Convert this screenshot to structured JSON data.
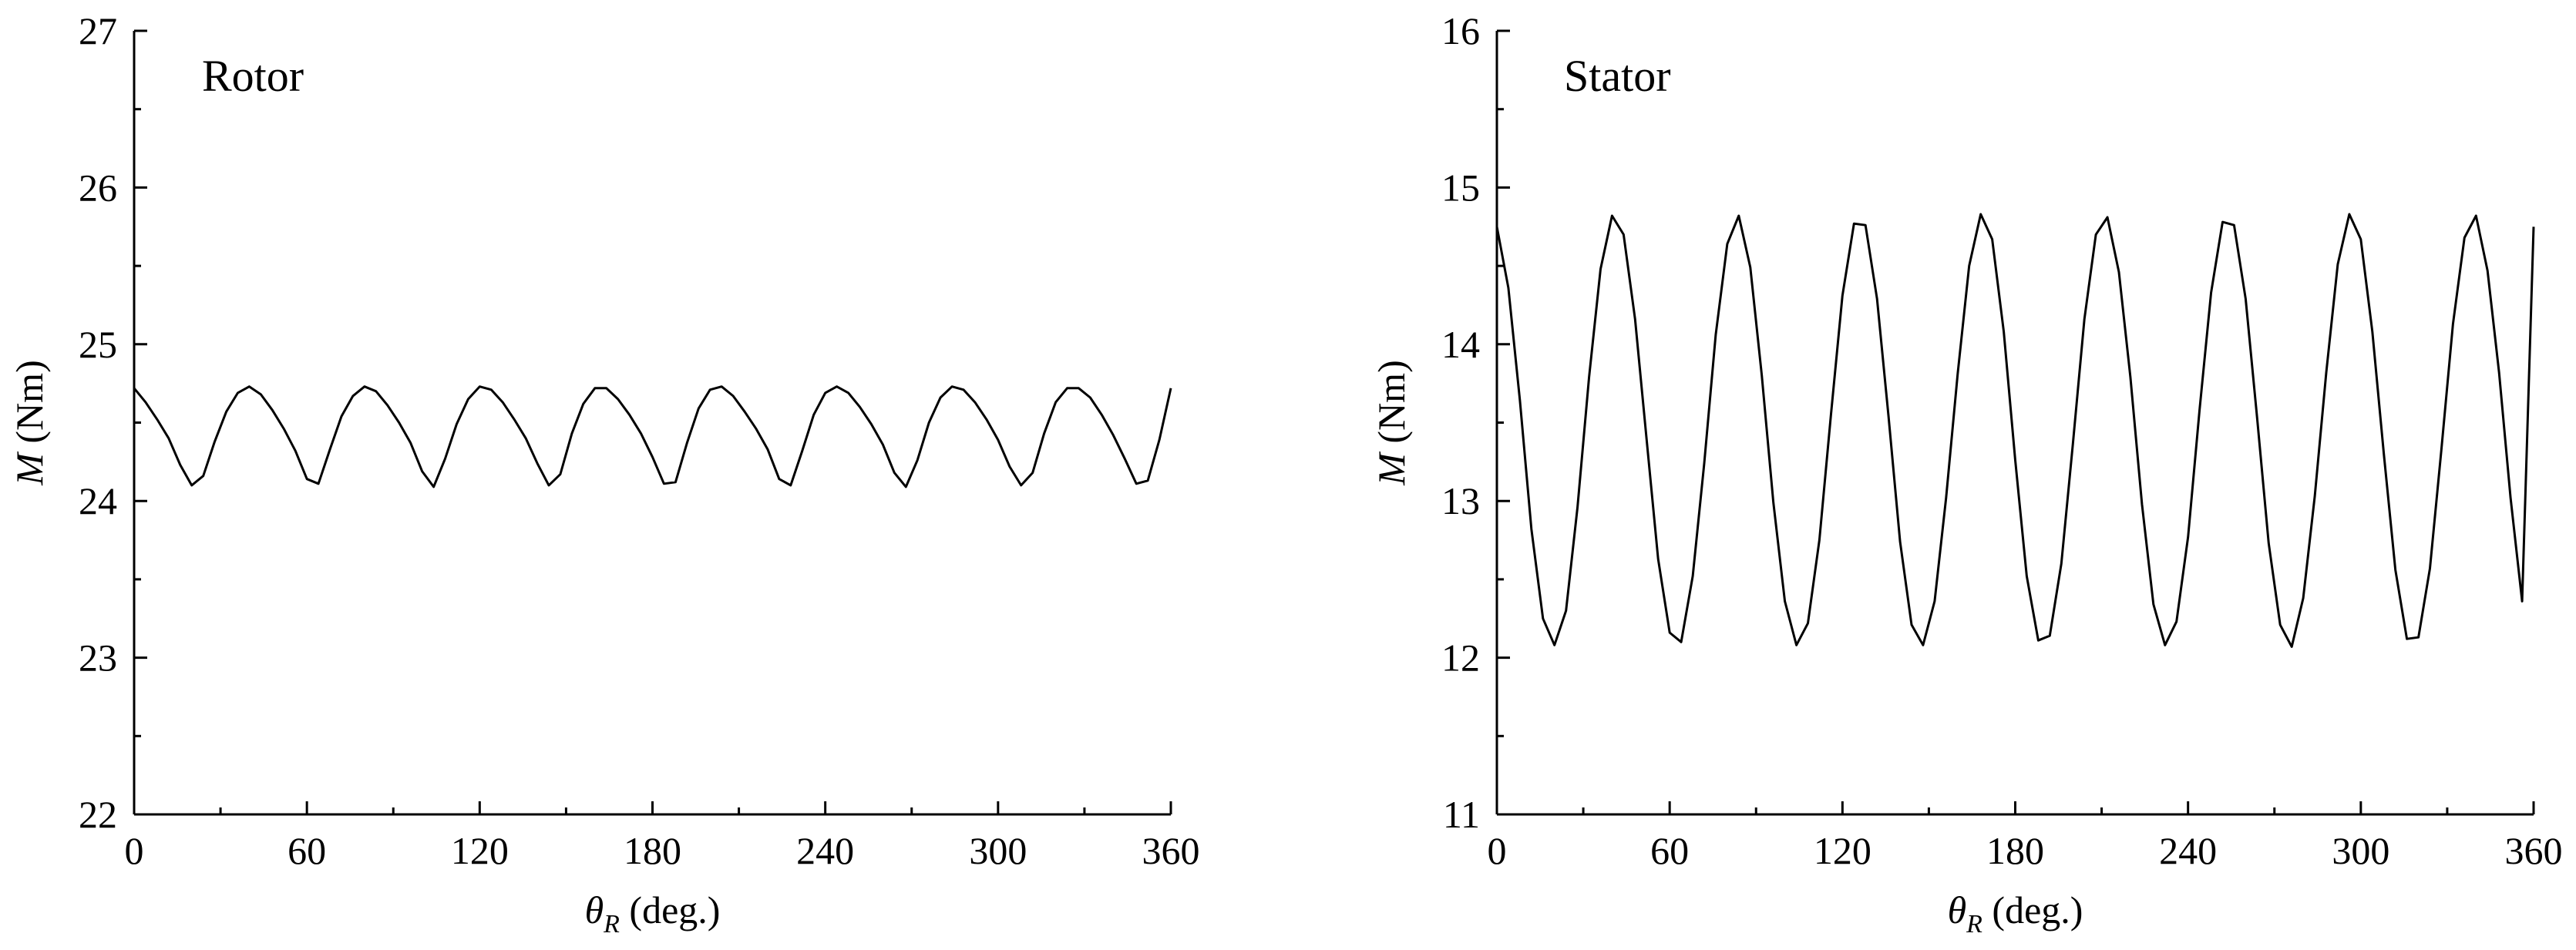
{
  "chart_data": [
    {
      "type": "line",
      "title": "Rotor",
      "xlabel": {
        "symbol": "θ",
        "subscript": "R",
        "rest": " (deg.)"
      },
      "ylabel": {
        "symbol": "M",
        "rest": " (Nm)"
      },
      "xlim": [
        0,
        360
      ],
      "ylim": [
        22,
        27
      ],
      "xticks": [
        "0",
        "60",
        "120",
        "180",
        "240",
        "300",
        "360"
      ],
      "yticks": [
        "22",
        "23",
        "24",
        "25",
        "26",
        "27"
      ],
      "grid": false,
      "series": [
        {
          "x": [
            0,
            4,
            8,
            12,
            16,
            20,
            24,
            28,
            32,
            36,
            40,
            44,
            48,
            52,
            56,
            60,
            64,
            68,
            72,
            76,
            80,
            84,
            88,
            92,
            96,
            100,
            104,
            108,
            112,
            116,
            120,
            124,
            128,
            132,
            136,
            140,
            144,
            148,
            152,
            156,
            160,
            164,
            168,
            172,
            176,
            180,
            184,
            188,
            192,
            196,
            200,
            204,
            208,
            212,
            216,
            220,
            224,
            228,
            232,
            236,
            240,
            244,
            248,
            252,
            256,
            260,
            264,
            268,
            272,
            276,
            280,
            284,
            288,
            292,
            296,
            300,
            304,
            308,
            312,
            316,
            320,
            324,
            328,
            332,
            336,
            340,
            344,
            348,
            352,
            356,
            360
          ],
          "y": [
            24.72,
            24.63,
            24.52,
            24.4,
            24.23,
            24.1,
            24.16,
            24.38,
            24.57,
            24.69,
            24.73,
            24.68,
            24.58,
            24.46,
            24.32,
            24.14,
            24.11,
            24.33,
            24.54,
            24.67,
            24.73,
            24.7,
            24.61,
            24.5,
            24.37,
            24.19,
            24.09,
            24.27,
            24.49,
            24.65,
            24.73,
            24.71,
            24.63,
            24.52,
            24.4,
            24.24,
            24.1,
            24.17,
            24.43,
            24.62,
            24.72,
            24.72,
            24.65,
            24.55,
            24.43,
            24.28,
            24.11,
            24.12,
            24.37,
            24.59,
            24.71,
            24.73,
            24.67,
            24.57,
            24.46,
            24.33,
            24.14,
            24.1,
            24.32,
            24.55,
            24.69,
            24.73,
            24.69,
            24.6,
            24.49,
            24.36,
            24.18,
            24.09,
            24.26,
            24.5,
            24.66,
            24.73,
            24.71,
            24.63,
            24.52,
            24.39,
            24.22,
            24.1,
            24.18,
            24.43,
            24.63,
            24.72,
            24.72,
            24.66,
            24.55,
            24.42,
            24.27,
            24.11,
            24.13,
            24.39,
            24.72
          ]
        }
      ]
    },
    {
      "type": "line",
      "title": "Stator",
      "xlabel": {
        "symbol": "θ",
        "subscript": "R",
        "rest": " (deg.)"
      },
      "ylabel": {
        "symbol": "M",
        "rest": " (Nm)"
      },
      "xlim": [
        0,
        360
      ],
      "ylim": [
        11,
        16
      ],
      "xticks": [
        "0",
        "60",
        "120",
        "180",
        "240",
        "300",
        "360"
      ],
      "yticks": [
        "11",
        "12",
        "13",
        "14",
        "15",
        "16"
      ],
      "grid": false,
      "series": [
        {
          "x": [
            0,
            4,
            8,
            12,
            16,
            20,
            24,
            28,
            32,
            36,
            40,
            44,
            48,
            52,
            56,
            60,
            64,
            68,
            72,
            76,
            80,
            84,
            88,
            92,
            96,
            100,
            104,
            108,
            112,
            116,
            120,
            124,
            128,
            132,
            136,
            140,
            144,
            148,
            152,
            156,
            160,
            164,
            168,
            172,
            176,
            180,
            184,
            188,
            192,
            196,
            200,
            204,
            208,
            212,
            216,
            220,
            224,
            228,
            232,
            236,
            240,
            244,
            248,
            252,
            256,
            260,
            264,
            268,
            272,
            276,
            280,
            284,
            288,
            292,
            296,
            300,
            304,
            308,
            312,
            316,
            320,
            324,
            328,
            332,
            336,
            340,
            344,
            348,
            352,
            356,
            360
          ],
          "y": [
            14.75,
            14.36,
            13.64,
            12.82,
            12.25,
            12.08,
            12.3,
            12.96,
            13.79,
            14.48,
            14.82,
            14.7,
            14.16,
            13.39,
            12.63,
            12.16,
            12.1,
            12.52,
            13.24,
            14.06,
            14.64,
            14.82,
            14.49,
            13.8,
            12.99,
            12.36,
            12.08,
            12.22,
            12.75,
            13.55,
            14.31,
            14.77,
            14.76,
            14.29,
            13.54,
            12.74,
            12.21,
            12.08,
            12.36,
            13.02,
            13.81,
            14.5,
            14.83,
            14.67,
            14.08,
            13.26,
            12.52,
            12.11,
            12.14,
            12.6,
            13.36,
            14.16,
            14.7,
            14.81,
            14.46,
            13.79,
            12.98,
            12.34,
            12.08,
            12.23,
            12.77,
            13.58,
            14.33,
            14.78,
            14.76,
            14.29,
            13.53,
            12.73,
            12.21,
            12.07,
            12.38,
            13.03,
            13.82,
            14.51,
            14.83,
            14.67,
            14.08,
            13.3,
            12.56,
            12.12,
            12.13,
            12.57,
            13.33,
            14.13,
            14.68,
            14.82,
            14.47,
            13.82,
            13.02,
            12.36,
            14.75
          ]
        }
      ]
    }
  ]
}
